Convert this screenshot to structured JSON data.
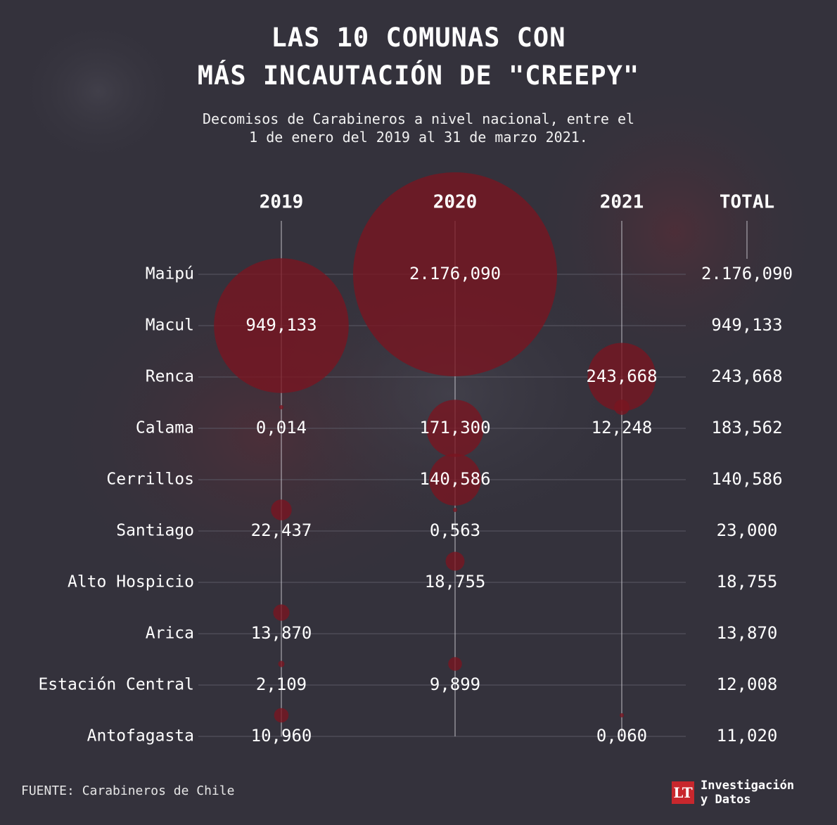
{
  "title_line1": "LAS 10 COMUNAS CON",
  "title_line2": "MÁS INCAUTACIÓN DE \"CREEPY\"",
  "subtitle_line1": "Decomisos de Carabineros a nivel nacional, entre el",
  "subtitle_line2": "1 de enero del 2019 al 31 de marzo 2021.",
  "source": "FUENTE: Carabineros de Chile",
  "logo": {
    "mark": "LT",
    "line1": "Investigación",
    "line2": "y Datos"
  },
  "colors": {
    "background": "#34323c",
    "bubble": "#7a1420",
    "grid": "#5a5864",
    "text": "#ffffff"
  },
  "chart_data": {
    "type": "bubble",
    "title": "LAS 10 COMUNAS CON MÁS INCAUTACIÓN DE \"CREEPY\"",
    "columns": [
      "2019",
      "2020",
      "2021",
      "TOTAL"
    ],
    "rows": [
      {
        "comuna": "Maipú",
        "values": {
          "2020": 2176.09
        },
        "labels": {
          "2020": "2.176,090",
          "TOTAL": "2.176,090"
        }
      },
      {
        "comuna": "Macul",
        "values": {
          "2019": 949.133
        },
        "labels": {
          "2019": "949,133",
          "TOTAL": "949,133"
        }
      },
      {
        "comuna": "Renca",
        "values": {
          "2021": 243.668
        },
        "labels": {
          "2021": "243,668",
          "TOTAL": "243,668"
        }
      },
      {
        "comuna": "Calama",
        "values": {
          "2019": 0.014,
          "2020": 171.3,
          "2021": 12.248
        },
        "labels": {
          "2019": "0,014",
          "2020": "171,300",
          "2021": "12,248",
          "TOTAL": "183,562"
        }
      },
      {
        "comuna": "Cerrillos",
        "values": {
          "2020": 140.586
        },
        "labels": {
          "2020": "140,586",
          "TOTAL": "140,586"
        }
      },
      {
        "comuna": "Santiago",
        "values": {
          "2019": 22.437,
          "2020": 0.563
        },
        "labels": {
          "2019": "22,437",
          "2020": "0,563",
          "TOTAL": "23,000"
        }
      },
      {
        "comuna": "Alto Hospicio",
        "values": {
          "2020": 18.755
        },
        "labels": {
          "2020": "18,755",
          "TOTAL": "18,755"
        }
      },
      {
        "comuna": "Arica",
        "values": {
          "2019": 13.87
        },
        "labels": {
          "2019": "13,870",
          "TOTAL": "13,870"
        }
      },
      {
        "comuna": "Estación Central",
        "values": {
          "2019": 2.109,
          "2020": 9.899
        },
        "labels": {
          "2019": "2,109",
          "2020": "9,899",
          "TOTAL": "12,008"
        }
      },
      {
        "comuna": "Antofagasta",
        "values": {
          "2019": 10.96,
          "2021": 0.06
        },
        "labels": {
          "2019": "10,960",
          "2021": "0,060",
          "TOTAL": "11,020"
        }
      }
    ]
  }
}
